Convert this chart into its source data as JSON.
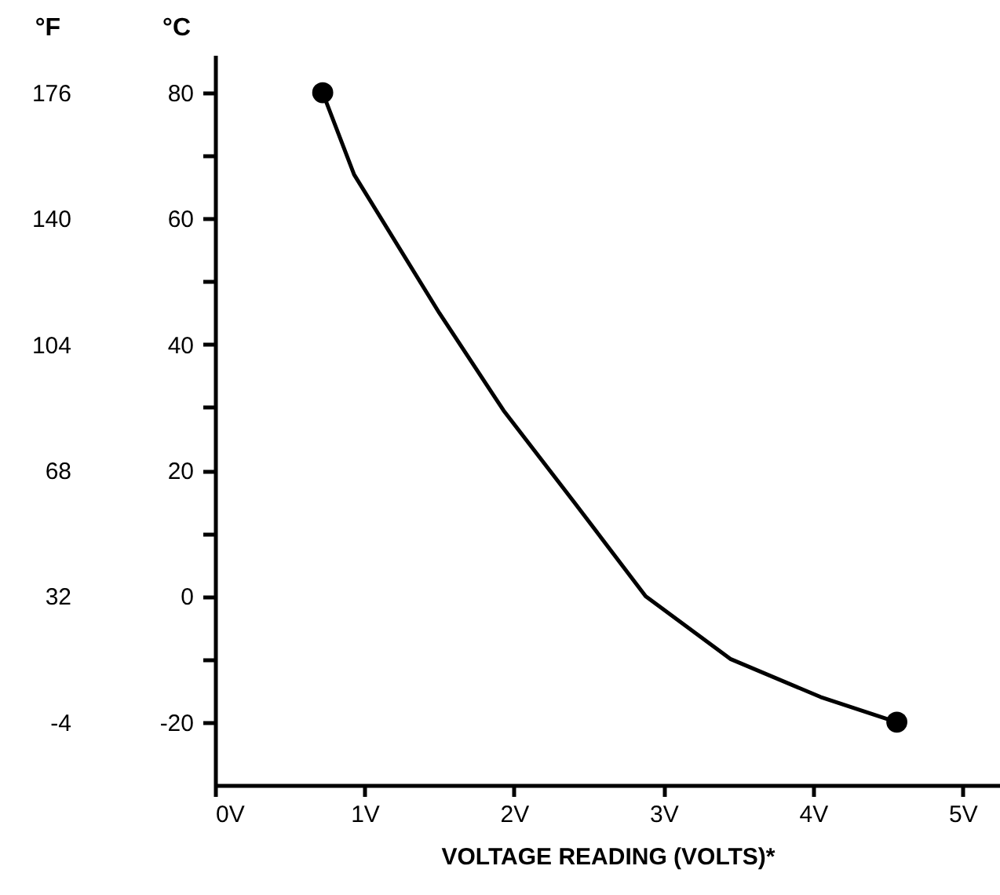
{
  "chart_data": {
    "type": "line",
    "xlabel": "VOLTAGE READING (VOLTS)*",
    "ylabel": "°C",
    "y2label": "°F",
    "series": [
      {
        "type": "line",
        "color": "#000000",
        "marker": "none",
        "x": [
          0.72,
          0.93,
          1.5,
          1.93,
          2.4,
          2.88,
          3.45,
          4.05,
          4.56
        ],
        "values": [
          80,
          67,
          45,
          29.5,
          15,
          0,
          -10,
          -16,
          -20
        ]
      },
      {
        "type": "scatter",
        "color": "#000000",
        "marker": "circle",
        "x": [
          0.72,
          4.56
        ],
        "values": [
          80,
          -20
        ]
      }
    ],
    "xlim": [
      0,
      5.25
    ],
    "xticks": [
      {
        "value": 0,
        "label": "0V"
      },
      {
        "value": 1,
        "label": "1V"
      },
      {
        "value": 2,
        "label": "2V"
      },
      {
        "value": 3,
        "label": "3V"
      },
      {
        "value": 4,
        "label": "4V"
      },
      {
        "value": 5,
        "label": "5V"
      }
    ],
    "ylim": [
      -30,
      86
    ],
    "yticks": [
      -20,
      {
        "value": -10,
        "label": null
      },
      0,
      {
        "value": 10,
        "label": null
      },
      20,
      {
        "value": 30,
        "label": null
      },
      40,
      {
        "value": 50,
        "label": null
      },
      60,
      {
        "value": 70,
        "label": null
      },
      80
    ],
    "y2lim": [
      -22,
      186.8
    ],
    "y2ticks": [
      -4,
      32,
      68,
      104,
      140,
      176
    ]
  }
}
